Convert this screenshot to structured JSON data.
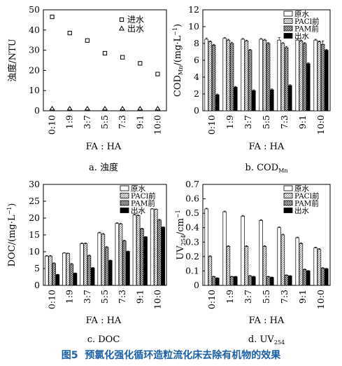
{
  "figure_caption": {
    "prefix": "图5",
    "text": "预氯化强化循环造粒流化床去除有机物的效果"
  },
  "colors": {
    "caption": "#1a5fa8",
    "raw": "#ffffff",
    "pacl": "#e4e4e4",
    "pam": "#a8a8a8",
    "out": "#000000"
  },
  "chart_data": [
    {
      "type": "scatter",
      "caption": "a. 浊度",
      "xlabel": "FA : HA",
      "ylabel": "浊度/NTU",
      "categories": [
        "0:10",
        "1:9",
        "3:7",
        "5:5",
        "7:3",
        "9:1",
        "10:0"
      ],
      "ylim": [
        0,
        50
      ],
      "yticks": [
        0,
        10,
        20,
        30,
        40,
        50
      ],
      "legend_position": "top-right",
      "series": [
        {
          "name": "进水",
          "marker": "square",
          "values": [
            46.5,
            38.5,
            34.8,
            28.5,
            26.5,
            23.5,
            18.2
          ]
        },
        {
          "name": "出水",
          "marker": "triangle",
          "values": [
            0.2,
            0.2,
            0.2,
            0.2,
            0.2,
            0.2,
            0.2
          ]
        }
      ]
    },
    {
      "type": "bar",
      "caption": "b. COD",
      "caption_sub": "Mn",
      "xlabel": "FA : HA",
      "ylabel": "COD",
      "ylabel_sub": "Mn",
      "ylabel_unit": "/(mg·L",
      "ylabel_sup": "−1",
      "ylabel_tail": ")",
      "categories": [
        "0:10",
        "1:9",
        "3:7",
        "5:5",
        "7:3",
        "9:1",
        "10:0"
      ],
      "ylim": [
        0,
        12
      ],
      "yticks": [
        0,
        2,
        4,
        6,
        8,
        10,
        12
      ],
      "legend_position": "top-right",
      "series": [
        {
          "name": "原水",
          "pattern": "raw",
          "values": [
            8.5,
            8.6,
            8.5,
            8.5,
            8.4,
            8.4,
            8.4
          ],
          "errors": [
            0.15,
            0.1,
            0.1,
            0.1,
            0.3,
            0.15,
            0.1
          ]
        },
        {
          "name": "PACl前",
          "pattern": "pacl",
          "values": [
            8.2,
            8.4,
            8.3,
            8.4,
            8.0,
            8.3,
            8.2
          ],
          "errors": [
            0.1,
            0.1,
            0.1,
            0.1,
            0.1,
            0.1,
            0.1
          ]
        },
        {
          "name": "PAM前",
          "pattern": "pam",
          "values": [
            7.8,
            8.0,
            7.2,
            8.0,
            7.5,
            8.0,
            7.9
          ],
          "errors": [
            0.1,
            0.15,
            0.1,
            0.1,
            0.15,
            0.1,
            0.4
          ]
        },
        {
          "name": "出水",
          "pattern": "out",
          "values": [
            1.9,
            2.8,
            2.4,
            2.5,
            3.0,
            5.6,
            7.2
          ],
          "errors": [
            0.1,
            0.1,
            0.1,
            0.1,
            0.1,
            0.1,
            0.1
          ]
        }
      ]
    },
    {
      "type": "bar",
      "caption": "c. DOC",
      "xlabel": "FA : HA",
      "ylabel": "DOC",
      "ylabel_unit": "/(mg·L",
      "ylabel_sup": "−1",
      "ylabel_tail": ")",
      "categories": [
        "0:10",
        "1:9",
        "3:7",
        "5:5",
        "7:3",
        "9:1",
        "10:0"
      ],
      "ylim": [
        0,
        30
      ],
      "yticks": [
        0,
        5,
        10,
        15,
        20,
        25,
        30
      ],
      "legend_position": "top-right",
      "series": [
        {
          "name": "原水",
          "pattern": "raw",
          "values": [
            8.7,
            9.6,
            12.4,
            15.6,
            18.4,
            20.9,
            22.7
          ],
          "errors": [
            0.2,
            0.1,
            0.2,
            0.2,
            0.2,
            0.2,
            0.1
          ]
        },
        {
          "name": "PACl前",
          "pattern": "pacl",
          "values": [
            8.7,
            9.5,
            12.4,
            15.2,
            18.2,
            20.7,
            22.6
          ],
          "errors": [
            0.2,
            0.1,
            0.2,
            0.2,
            0.2,
            0.2,
            0.1
          ]
        },
        {
          "name": "PAM前",
          "pattern": "pam",
          "values": [
            6.5,
            6.3,
            8.8,
            11.3,
            13.2,
            16.8,
            19.4
          ],
          "errors": [
            0.2,
            0.2,
            0.2,
            0.2,
            0.2,
            0.2,
            0.2
          ]
        },
        {
          "name": "出水",
          "pattern": "out",
          "values": [
            3.2,
            3.6,
            5.2,
            7.4,
            10.1,
            14.4,
            17.3
          ],
          "errors": [
            0.1,
            0.1,
            0.1,
            0.1,
            0.1,
            0.1,
            0.1
          ]
        }
      ]
    },
    {
      "type": "bar",
      "caption": "d. UV",
      "caption_sub": "254",
      "xlabel": "FA : HA",
      "ylabel": "UV",
      "ylabel_sub": "254",
      "ylabel_unit": "/cm",
      "ylabel_sup": "−1",
      "ylabel_tail": "",
      "categories": [
        "0:10",
        "1:9",
        "3:7",
        "5:5",
        "7:3",
        "9:1",
        "10:0"
      ],
      "ylim": [
        0,
        0.7
      ],
      "yticks": [
        0,
        0.1,
        0.2,
        0.3,
        0.4,
        0.5,
        0.6,
        0.7
      ],
      "ytick_labels": [
        "0",
        "0.1",
        "0.2",
        "0.3",
        "0.4",
        "0.5",
        "0.6",
        "0.7"
      ],
      "legend_position": "top-right",
      "series": [
        {
          "name": "原水",
          "pattern": "raw",
          "values": [
            0.53,
            0.51,
            0.48,
            0.45,
            0.4,
            0.33,
            0.26
          ],
          "errors": [
            0.005,
            0.005,
            0.005,
            0.005,
            0.005,
            0.005,
            0.005
          ]
        },
        {
          "name": "PACl前",
          "pattern": "pacl",
          "values": [
            0.2,
            0.27,
            0.27,
            0.27,
            0.35,
            0.29,
            0.25
          ],
          "errors": [
            0.005,
            0.005,
            0.005,
            0.005,
            0.005,
            0.005,
            0.005
          ]
        },
        {
          "name": "PAM前",
          "pattern": "pam",
          "values": [
            0.06,
            0.06,
            0.065,
            0.06,
            0.07,
            0.11,
            0.12
          ],
          "errors": [
            0.003,
            0.003,
            0.003,
            0.003,
            0.003,
            0.003,
            0.003
          ]
        },
        {
          "name": "出水",
          "pattern": "out",
          "values": [
            0.05,
            0.06,
            0.06,
            0.055,
            0.065,
            0.1,
            0.115
          ],
          "errors": [
            0.003,
            0.003,
            0.003,
            0.003,
            0.003,
            0.003,
            0.003
          ]
        }
      ]
    }
  ]
}
